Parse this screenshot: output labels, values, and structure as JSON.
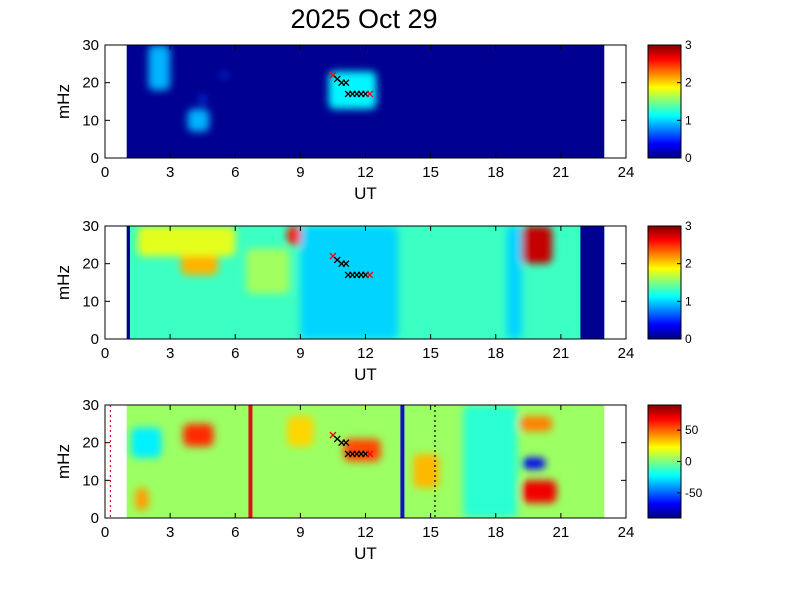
{
  "chart_data": [
    {
      "type": "heatmap",
      "title": "2025 Oct 29",
      "xlabel": "UT",
      "ylabel": "mHz",
      "xlim": [
        0,
        24
      ],
      "ylim": [
        0,
        30
      ],
      "xticks": [
        "0",
        "3",
        "6",
        "9",
        "12",
        "15",
        "18",
        "21",
        "24"
      ],
      "yticks": [
        "0",
        "10",
        "20",
        "30"
      ],
      "data_span_ut": [
        1,
        23
      ],
      "colorbar": {
        "range": [
          0,
          3
        ],
        "ticks": [
          "0",
          "1",
          "2",
          "3"
        ]
      },
      "background_level": 0.05,
      "features": [
        {
          "ut": [
            2.0,
            3.0
          ],
          "mhz": [
            18,
            30
          ],
          "level": 0.9
        },
        {
          "ut": [
            3.8,
            4.8
          ],
          "mhz": [
            7,
            13
          ],
          "level": 0.9
        },
        {
          "ut": [
            10.3,
            12.5
          ],
          "mhz": [
            13,
            23
          ],
          "level": 1.1
        },
        {
          "ut": [
            5.4,
            5.6
          ],
          "mhz": [
            21,
            23
          ],
          "level": 0.6
        },
        {
          "ut": [
            4.4,
            4.6
          ],
          "mhz": [
            14,
            17
          ],
          "level": 0.6
        }
      ],
      "markers": [
        {
          "ut": 10.5,
          "mhz": 22,
          "color": "red"
        },
        {
          "ut": 10.7,
          "mhz": 21,
          "color": "black"
        },
        {
          "ut": 10.9,
          "mhz": 20,
          "color": "black"
        },
        {
          "ut": 11.1,
          "mhz": 20,
          "color": "black"
        },
        {
          "ut": 11.2,
          "mhz": 17,
          "color": "black"
        },
        {
          "ut": 11.4,
          "mhz": 17,
          "color": "black"
        },
        {
          "ut": 11.6,
          "mhz": 17,
          "color": "black"
        },
        {
          "ut": 11.8,
          "mhz": 17,
          "color": "black"
        },
        {
          "ut": 12.0,
          "mhz": 17,
          "color": "black"
        },
        {
          "ut": 12.2,
          "mhz": 17,
          "color": "red"
        }
      ]
    },
    {
      "type": "heatmap",
      "title": "",
      "xlabel": "UT",
      "ylabel": "mHz",
      "xlim": [
        0,
        24
      ],
      "ylim": [
        0,
        30
      ],
      "xticks": [
        "0",
        "3",
        "6",
        "9",
        "12",
        "15",
        "18",
        "21",
        "24"
      ],
      "yticks": [
        "0",
        "10",
        "20",
        "30"
      ],
      "data_span_ut": [
        1,
        23
      ],
      "colorbar": {
        "range": [
          0,
          3
        ],
        "ticks": [
          "0",
          "1",
          "2",
          "3"
        ]
      },
      "background_level": 1.3,
      "edge_bands": [
        {
          "ut": [
            1.0,
            1.15
          ],
          "level": 0.05
        },
        {
          "ut": [
            21.9,
            23.0
          ],
          "level": 0.05
        }
      ],
      "features": [
        {
          "ut": [
            3.5,
            5.2
          ],
          "mhz": [
            17,
            25
          ],
          "level": 2.1
        },
        {
          "ut": [
            8.4,
            9.1
          ],
          "mhz": [
            25,
            30
          ],
          "level": 2.6
        },
        {
          "ut": [
            19.2,
            20.6
          ],
          "mhz": [
            20,
            30
          ],
          "level": 2.8
        },
        {
          "ut": [
            1.5,
            6.0
          ],
          "mhz": [
            22,
            30
          ],
          "level": 1.8
        },
        {
          "ut": [
            9.0,
            13.5
          ],
          "mhz": [
            0,
            30
          ],
          "level": 1.0
        },
        {
          "ut": [
            18.5,
            19.2
          ],
          "mhz": [
            0,
            30
          ],
          "level": 1.0
        },
        {
          "ut": [
            6.5,
            8.5
          ],
          "mhz": [
            12,
            24
          ],
          "level": 1.6
        }
      ],
      "markers": [
        {
          "ut": 10.5,
          "mhz": 22,
          "color": "red"
        },
        {
          "ut": 10.7,
          "mhz": 21,
          "color": "black"
        },
        {
          "ut": 10.9,
          "mhz": 20,
          "color": "black"
        },
        {
          "ut": 11.1,
          "mhz": 20,
          "color": "black"
        },
        {
          "ut": 11.2,
          "mhz": 17,
          "color": "black"
        },
        {
          "ut": 11.4,
          "mhz": 17,
          "color": "black"
        },
        {
          "ut": 11.6,
          "mhz": 17,
          "color": "black"
        },
        {
          "ut": 11.8,
          "mhz": 17,
          "color": "black"
        },
        {
          "ut": 12.0,
          "mhz": 17,
          "color": "black"
        },
        {
          "ut": 12.2,
          "mhz": 17,
          "color": "red"
        }
      ]
    },
    {
      "type": "heatmap",
      "title": "",
      "xlabel": "UT",
      "ylabel": "mHz",
      "xlim": [
        0,
        24
      ],
      "ylim": [
        0,
        30
      ],
      "xticks": [
        "0",
        "3",
        "6",
        "9",
        "12",
        "15",
        "18",
        "21",
        "24"
      ],
      "yticks": [
        "0",
        "10",
        "20",
        "30"
      ],
      "data_span_ut": [
        1,
        23
      ],
      "colorbar": {
        "range": [
          -90,
          90
        ],
        "ticks": [
          "50",
          "0",
          "-50"
        ],
        "tick_values": [
          50,
          0,
          -50
        ]
      },
      "background_level": 5,
      "features": [
        {
          "ut": [
            3.6,
            5.0
          ],
          "mhz": [
            19,
            25
          ],
          "level": 60
        },
        {
          "ut": [
            11.0,
            12.7
          ],
          "mhz": [
            15,
            21
          ],
          "level": 55
        },
        {
          "ut": [
            19.2,
            20.8
          ],
          "mhz": [
            4,
            10
          ],
          "level": 70
        },
        {
          "ut": [
            19.1,
            20.6
          ],
          "mhz": [
            23,
            27
          ],
          "level": 45
        },
        {
          "ut": [
            19.2,
            20.3
          ],
          "mhz": [
            13,
            16
          ],
          "level": -70
        },
        {
          "ut": [
            1.2,
            2.6
          ],
          "mhz": [
            16,
            24
          ],
          "level": -25
        },
        {
          "ut": [
            14.2,
            15.4
          ],
          "mhz": [
            8,
            17
          ],
          "level": 35
        },
        {
          "ut": [
            16.5,
            19.0
          ],
          "mhz": [
            0,
            30
          ],
          "level": -15
        },
        {
          "ut": [
            8.4,
            9.6
          ],
          "mhz": [
            19,
            27
          ],
          "level": 30
        },
        {
          "ut": [
            1.4,
            2.0
          ],
          "mhz": [
            2,
            8
          ],
          "level": 40
        }
      ],
      "vlines": [
        {
          "ut": 6.7,
          "color": "red",
          "style": "solid"
        },
        {
          "ut": 13.7,
          "color": "blue",
          "style": "solid"
        },
        {
          "ut": 0.25,
          "color": "red",
          "style": "dotted"
        },
        {
          "ut": 15.2,
          "color": "black",
          "style": "dotted"
        }
      ],
      "markers": [
        {
          "ut": 10.5,
          "mhz": 22,
          "color": "red"
        },
        {
          "ut": 10.7,
          "mhz": 21,
          "color": "black"
        },
        {
          "ut": 10.9,
          "mhz": 20,
          "color": "black"
        },
        {
          "ut": 11.1,
          "mhz": 20,
          "color": "black"
        },
        {
          "ut": 11.2,
          "mhz": 17,
          "color": "black"
        },
        {
          "ut": 11.4,
          "mhz": 17,
          "color": "black"
        },
        {
          "ut": 11.6,
          "mhz": 17,
          "color": "black"
        },
        {
          "ut": 11.8,
          "mhz": 17,
          "color": "black"
        },
        {
          "ut": 12.0,
          "mhz": 17,
          "color": "black"
        },
        {
          "ut": 12.2,
          "mhz": 17,
          "color": "red"
        }
      ]
    }
  ]
}
